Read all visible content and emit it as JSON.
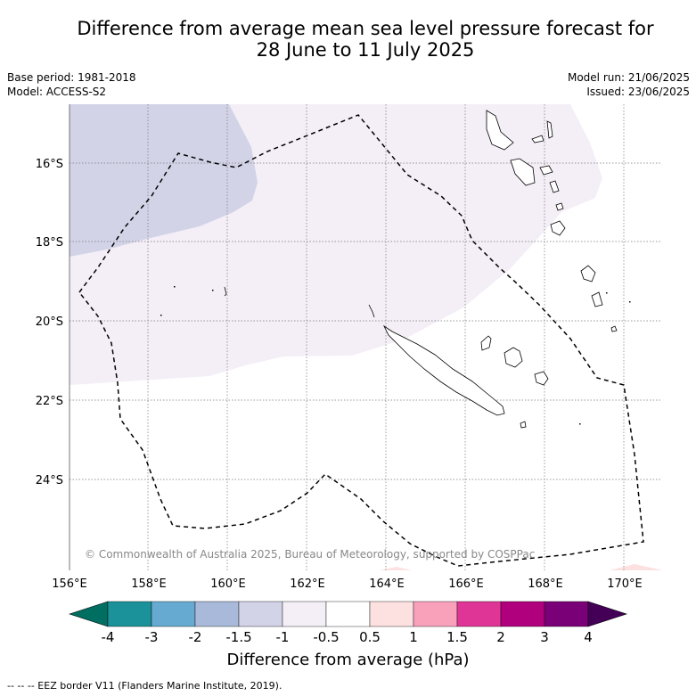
{
  "title_line1": "Difference from average mean sea level pressure forecast for",
  "title_line2": "28 June to 11 July 2025",
  "meta": {
    "base_period": "Base period: 1981-2018",
    "model": "Model: ACCESS-S2",
    "model_run": "Model run: 21/06/2025",
    "issued": "Issued: 23/06/2025"
  },
  "map": {
    "lon_labels": [
      "156°E",
      "158°E",
      "160°E",
      "162°E",
      "164°E",
      "166°E",
      "168°E",
      "170°E"
    ],
    "lat_labels": [
      "16°S",
      "18°S",
      "20°S",
      "22°S",
      "24°S"
    ],
    "copyright": "© Commonwealth of Australia 2025, Bureau of Meteorology, supported by COSPPac"
  },
  "colorbar": {
    "ticks": [
      "-4",
      "-3",
      "-2",
      "-1.5",
      "-1",
      "-0.5",
      "0.5",
      "1",
      "1.5",
      "2",
      "3",
      "4"
    ],
    "colors": [
      "#006e60",
      "#1b9199",
      "#66aad2",
      "#a9b9d9",
      "#d3d3e8",
      "#f4eef6",
      "#ffffff",
      "#fde0e0",
      "#f9a0bb",
      "#df3596",
      "#b0007e",
      "#7a0077",
      "#440057"
    ],
    "title": "Difference from average (hPa)"
  },
  "footer": "--  --  -- EEZ border V11 (Flanders Marine Institute, 2019)."
}
